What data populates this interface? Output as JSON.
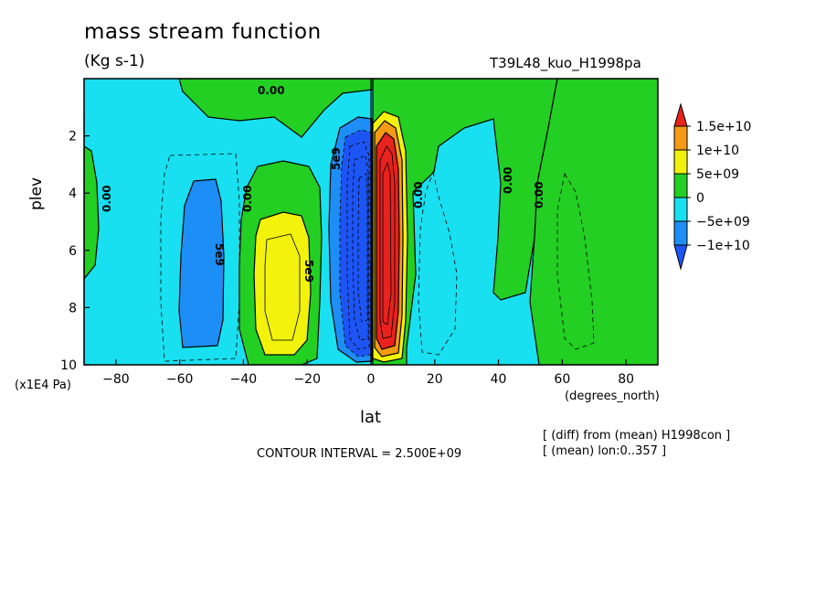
{
  "chart_data": {
    "type": "heatmap",
    "title": "mass stream function",
    "units": "(Kg s-1)",
    "run_label": "T39L48_kuo_H1998pa",
    "xlabel": "lat",
    "xunit": "(degrees_north)",
    "ylabel": "plev",
    "yunit": "(x1E4 Pa)",
    "x_ticks": [
      "-80",
      "-60",
      "-40",
      "-20",
      "0",
      "20",
      "40",
      "60",
      "80"
    ],
    "y_ticks": [
      "2",
      "4",
      "6",
      "8",
      "10"
    ],
    "xlim": [
      -90,
      90
    ],
    "ylim": [
      10,
      0
    ],
    "contour_interval": "CONTOUR INTERVAL = 2.500E+09",
    "notes": [
      "[ (diff) from (mean) H1998con ]",
      "[ (mean) lon:0..357 ]"
    ],
    "contour_labels": [
      "0.00",
      "0.00",
      "0.00",
      "0.00",
      "0.00",
      "0.00",
      "5e9",
      "5e9",
      "5e9"
    ],
    "legend": {
      "labels": [
        "1.5e+10",
        "1e+10",
        "5e+09",
        "0",
        "-5e+09",
        "-1e+10"
      ],
      "colors": [
        "#e8221e",
        "#f59a14",
        "#f2f20c",
        "#22cf22",
        "#18e0f0",
        "#1d8ef5",
        "#1d55f5"
      ]
    },
    "features": [
      {
        "name": "southern-negative-cell",
        "lat": [
          -58,
          -47
        ],
        "plev": [
          3.6,
          9.2
        ],
        "level": "-5e+09"
      },
      {
        "name": "subtropical-positive-cell",
        "lat": [
          -40,
          -23
        ],
        "plev": [
          5.0,
          9.6
        ],
        "level": "5e+09"
      },
      {
        "name": "equatorial-negative-core",
        "lat": [
          -15,
          0
        ],
        "plev": [
          1.5,
          9.8
        ],
        "level": "<-1e+10"
      },
      {
        "name": "equatorial-positive-core",
        "lat": [
          0,
          10
        ],
        "plev": [
          1.3,
          9.6
        ],
        "level": "1.5e+10"
      }
    ]
  }
}
